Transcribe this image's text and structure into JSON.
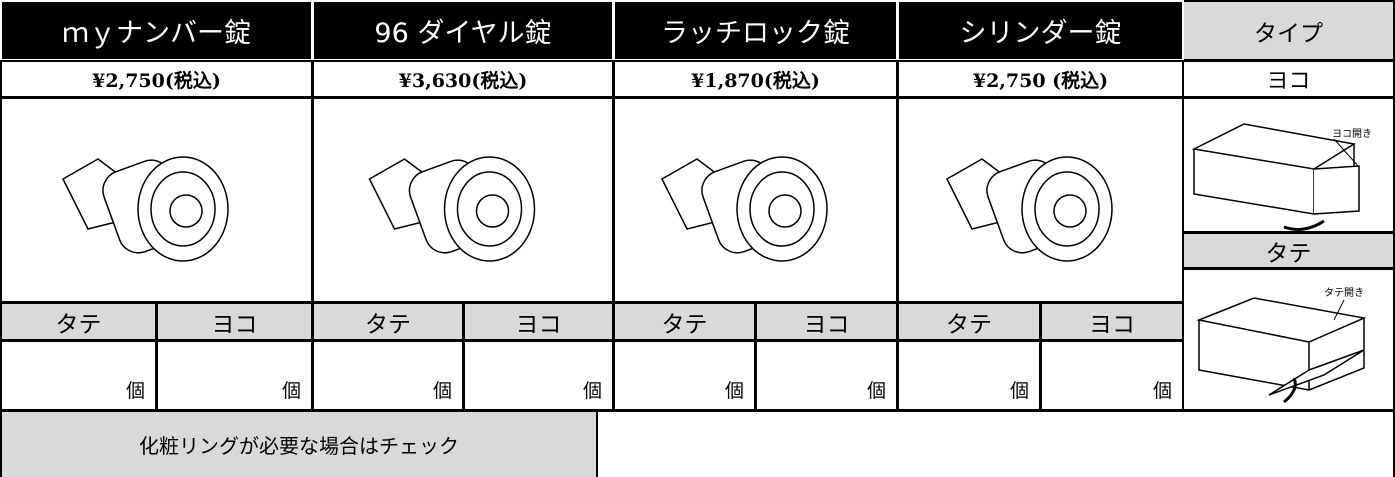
{
  "columns": [
    {
      "name": "ｍｙナンバー錠",
      "price": "¥2,750(税込)"
    },
    {
      "name": "96 ダイヤル錠",
      "price": "¥3,630(税込)"
    },
    {
      "name": "ラッチロック錠",
      "price": "¥1,870(税込)"
    },
    {
      "name": "シリンダー錠",
      "price": "¥2,750 (税込)"
    }
  ],
  "type_column": {
    "title": "タイプ",
    "horizontal": "ヨコ",
    "horizontal_caption": "ヨコ開き",
    "vertical": "タテ",
    "vertical_caption": "タテ開き"
  },
  "orientation_labels": [
    "タテ",
    "ヨコ"
  ],
  "unit": "個",
  "ring_option": "化粧リングが必要な場合はチェック"
}
